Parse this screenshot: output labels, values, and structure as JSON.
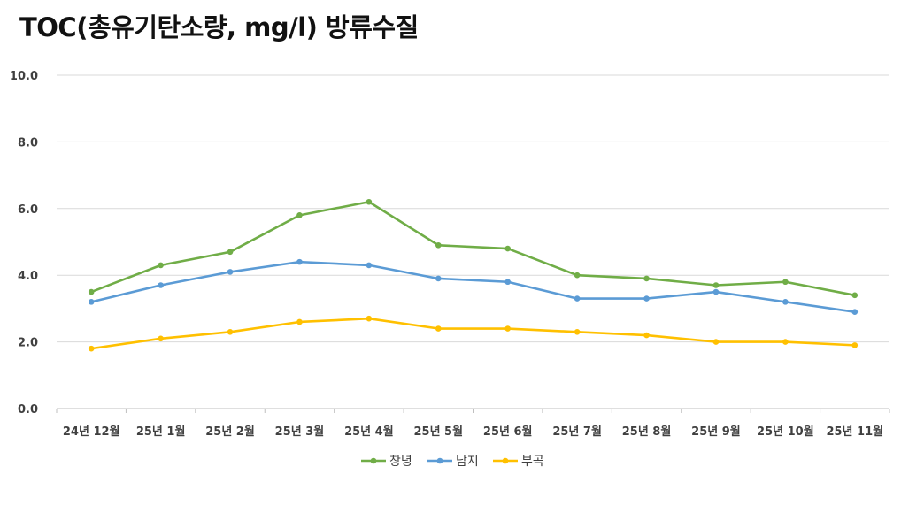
{
  "chart_data": {
    "type": "line",
    "title": "TOC(총유기탄소량, mg/l) 방류수질",
    "categories": [
      "24년 12월",
      "25년 1월",
      "25년 2월",
      "25년 3월",
      "25년 4월",
      "25년 5월",
      "25년 6월",
      "25년 7월",
      "25년 8월",
      "25년 9월",
      "25년 10월",
      "25년 11월"
    ],
    "yticks": [
      "0.0",
      "2.0",
      "4.0",
      "6.0",
      "8.0",
      "10.0"
    ],
    "ylim": [
      0,
      10
    ],
    "grid": true,
    "legend_position": "bottom",
    "series": [
      {
        "name": "창녕",
        "color": "#70ad47",
        "values": [
          3.5,
          4.3,
          4.7,
          5.8,
          6.2,
          4.9,
          4.8,
          4.0,
          3.9,
          3.7,
          3.8,
          3.4
        ]
      },
      {
        "name": "남지",
        "color": "#5b9bd5",
        "values": [
          3.2,
          3.7,
          4.1,
          4.4,
          4.3,
          3.9,
          3.8,
          3.3,
          3.3,
          3.5,
          3.2,
          2.9
        ]
      },
      {
        "name": "부곡",
        "color": "#ffc000",
        "values": [
          1.8,
          2.1,
          2.3,
          2.6,
          2.7,
          2.4,
          2.4,
          2.3,
          2.2,
          2.0,
          2.0,
          1.9
        ]
      }
    ]
  }
}
